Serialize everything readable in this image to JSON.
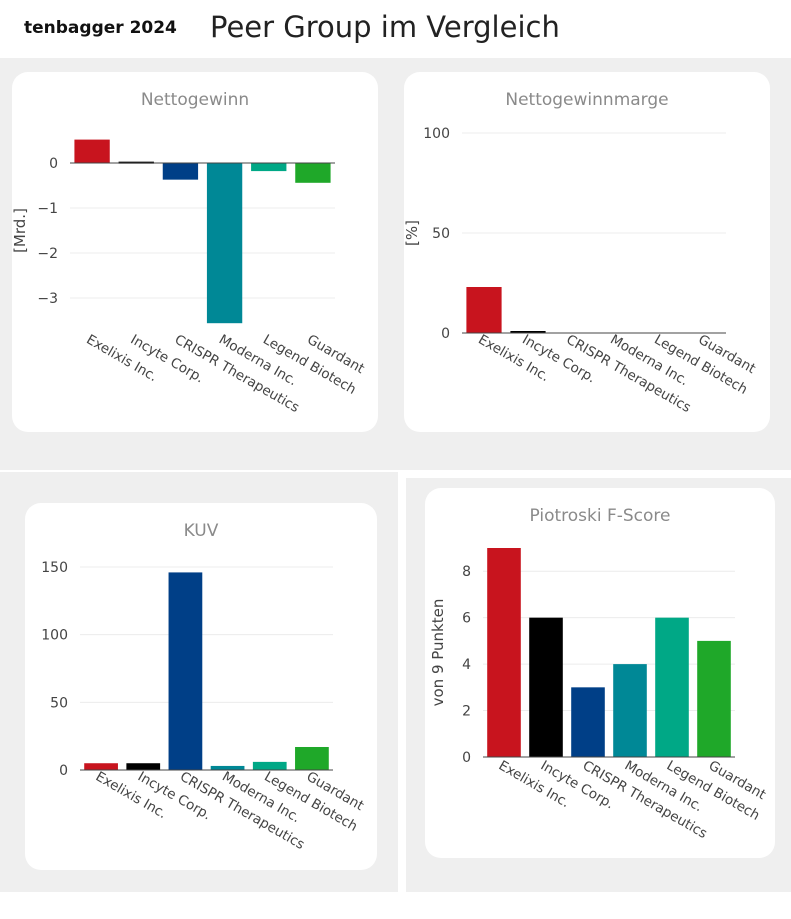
{
  "brand": "tenbagger 2024",
  "title": "Peer Group im Vergleich",
  "colors": [
    "#c8141e",
    "#000000",
    "#003f87",
    "#008896",
    "#00a886",
    "#1fa829"
  ],
  "chart_data": [
    {
      "type": "bar",
      "title": "Nettogewinn",
      "ylabel": "[Mrd.]",
      "categories": [
        "Exelixis Inc.",
        "Incyte Corp.",
        "CRISPR Therapeutics",
        "Moderna Inc.",
        "Legend Biotech",
        "Guardant"
      ],
      "values": [
        0.52,
        0.03,
        -0.37,
        -3.56,
        -0.18,
        -0.44
      ],
      "ylim": [
        -3.6,
        0.6
      ],
      "ticks": [
        0,
        -1,
        -2,
        -3
      ],
      "tick_labels": [
        "0",
        "−1",
        "−2",
        "−3"
      ],
      "grid": true
    },
    {
      "type": "bar",
      "title": "Nettogewinnmarge",
      "ylabel": "[%]",
      "categories": [
        "Exelixis Inc.",
        "Incyte Corp.",
        "CRISPR Therapeutics",
        "Moderna Inc.",
        "Legend Biotech",
        "Guardant"
      ],
      "values": [
        23,
        1,
        0,
        0,
        0,
        0
      ],
      "ylim": [
        0,
        100
      ],
      "ticks": [
        0,
        50,
        100
      ],
      "tick_labels": [
        "0",
        "50",
        "100"
      ],
      "grid": true
    },
    {
      "type": "bar",
      "title": "KUV",
      "ylabel": "",
      "categories": [
        "Exelixis Inc.",
        "Incyte Corp.",
        "CRISPR Therapeutics",
        "Moderna Inc.",
        "Legend Biotech",
        "Guardant"
      ],
      "values": [
        5,
        5,
        146,
        3,
        6,
        17
      ],
      "ylim": [
        0,
        150
      ],
      "ticks": [
        0,
        50,
        100,
        150
      ],
      "tick_labels": [
        "0",
        "50",
        "100",
        "150"
      ],
      "grid": true
    },
    {
      "type": "bar",
      "title": "Piotroski F-Score",
      "ylabel": "von 9 Punkten",
      "categories": [
        "Exelixis Inc.",
        "Incyte Corp.",
        "CRISPR Therapeutics",
        "Moderna Inc.",
        "Legend Biotech",
        "Guardant"
      ],
      "values": [
        9,
        6,
        3,
        4,
        6,
        5
      ],
      "ylim": [
        0,
        9
      ],
      "ticks": [
        0,
        2,
        4,
        6,
        8
      ],
      "tick_labels": [
        "0",
        "2",
        "4",
        "6",
        "8"
      ],
      "grid": true
    }
  ]
}
